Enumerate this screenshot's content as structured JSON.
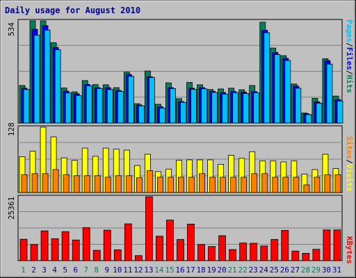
{
  "title": "Daily usage for August 2010",
  "colors": {
    "background": "#c0c0c0",
    "hits": "#00805c",
    "files": "#0000ff",
    "pages": "#00c0ff",
    "visits": "#ffff00",
    "sites": "#ff8000",
    "kbytes": "#ff0000",
    "weekend_day": "#00805c",
    "weekday": "#00008b"
  },
  "legend": {
    "top": [
      "Pages",
      "Files",
      "Hits"
    ],
    "middle": [
      "Sites",
      "Visits"
    ],
    "bottom": [
      "KBytes"
    ]
  },
  "chart_data": [
    {
      "type": "bar",
      "panel": "hits-files-pages",
      "max_label": "534",
      "ylim": [
        0,
        534
      ],
      "categories": [
        "1",
        "2",
        "3",
        "4",
        "5",
        "6",
        "7",
        "8",
        "9",
        "10",
        "11",
        "12",
        "13",
        "14",
        "15",
        "16",
        "17",
        "18",
        "19",
        "20",
        "21",
        "22",
        "23",
        "24",
        "25",
        "26",
        "27",
        "28",
        "29",
        "30",
        "31"
      ],
      "series": [
        {
          "name": "Hits",
          "values": [
            196,
            534,
            534,
            420,
            183,
            163,
            222,
            201,
            200,
            185,
            266,
            101,
            272,
            98,
            210,
            127,
            212,
            200,
            175,
            178,
            182,
            174,
            196,
            527,
            392,
            352,
            204,
            52,
            129,
            336,
            141
          ]
        },
        {
          "name": "Files",
          "values": [
            182,
            490,
            509,
            395,
            167,
            153,
            202,
            185,
            185,
            170,
            254,
            94,
            242,
            85,
            185,
            112,
            182,
            185,
            166,
            160,
            165,
            162,
            164,
            485,
            369,
            338,
            193,
            48,
            111,
            326,
            123
          ]
        },
        {
          "name": "Pages",
          "values": [
            175,
            459,
            486,
            383,
            157,
            143,
            194,
            180,
            175,
            165,
            244,
            90,
            238,
            78,
            180,
            108,
            176,
            179,
            160,
            151,
            159,
            154,
            158,
            472,
            358,
            327,
            182,
            44,
            104,
            308,
            115
          ]
        }
      ]
    },
    {
      "type": "bar",
      "panel": "visits-sites",
      "max_label": "128",
      "ylim": [
        0,
        128
      ],
      "categories": [
        "1",
        "2",
        "3",
        "4",
        "5",
        "6",
        "7",
        "8",
        "9",
        "10",
        "11",
        "12",
        "13",
        "14",
        "15",
        "16",
        "17",
        "18",
        "19",
        "20",
        "21",
        "22",
        "23",
        "24",
        "25",
        "26",
        "27",
        "28",
        "29",
        "30",
        "31"
      ],
      "series": [
        {
          "name": "Visits",
          "values": [
            70,
            81,
            128,
            109,
            68,
            63,
            87,
            71,
            87,
            85,
            83,
            53,
            75,
            41,
            46,
            63,
            64,
            64,
            64,
            55,
            73,
            67,
            80,
            62,
            62,
            60,
            62,
            36,
            45,
            75,
            47
          ]
        },
        {
          "name": "Sites",
          "values": [
            35,
            37,
            37,
            45,
            35,
            33,
            33,
            33,
            30,
            33,
            33,
            29,
            43,
            30,
            30,
            30,
            30,
            37,
            30,
            30,
            30,
            30,
            37,
            37,
            30,
            30,
            30,
            15,
            30,
            35,
            35
          ]
        }
      ]
    },
    {
      "type": "bar",
      "panel": "kbytes",
      "max_label": "25361",
      "ylim": [
        0,
        25361
      ],
      "categories": [
        "1",
        "2",
        "3",
        "4",
        "5",
        "6",
        "7",
        "8",
        "9",
        "10",
        "11",
        "12",
        "13",
        "14",
        "15",
        "16",
        "17",
        "18",
        "19",
        "20",
        "21",
        "22",
        "23",
        "24",
        "25",
        "26",
        "27",
        "28",
        "29",
        "30",
        "31"
      ],
      "series": [
        {
          "name": "KBytes",
          "values": [
            8500,
            6400,
            11800,
            8700,
            11500,
            8200,
            13100,
            4100,
            12100,
            4300,
            14600,
            2000,
            25361,
            9700,
            16100,
            8400,
            14500,
            6400,
            5600,
            9900,
            4400,
            7000,
            6900,
            5800,
            8400,
            12000,
            3800,
            2900,
            4500,
            12200,
            12200
          ]
        }
      ]
    }
  ],
  "weekend_days": [
    1,
    7,
    8,
    14,
    15,
    21,
    22,
    28,
    29
  ]
}
